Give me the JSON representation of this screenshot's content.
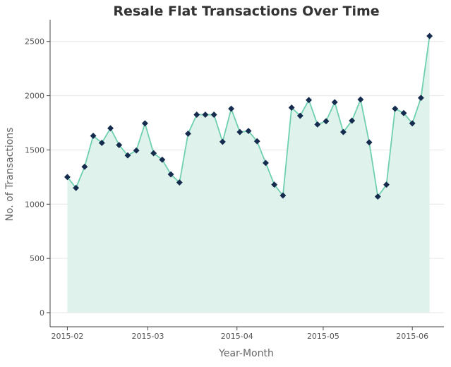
{
  "chart_data": {
    "type": "line",
    "title": "Resale Flat Transactions Over Time",
    "xlabel": "Year-Month",
    "ylabel": "No. of Transactions",
    "ylim": [
      -130,
      2700
    ],
    "yticks": [
      0,
      500,
      1000,
      1500,
      2000,
      2500
    ],
    "xticks": [
      {
        "label": "2015-02",
        "day": 0
      },
      {
        "label": "2015-03",
        "day": 28
      },
      {
        "label": "2015-04",
        "day": 59
      },
      {
        "label": "2015-05",
        "day": 89
      },
      {
        "label": "2015-06",
        "day": 120
      }
    ],
    "xlim_days": [
      -6,
      131
    ],
    "grid": true,
    "fill_area": true,
    "colors": {
      "line": "#6fd0b0",
      "fill": "#dff3ec",
      "marker": "#152c4f"
    },
    "series": [
      {
        "name": "Transactions",
        "x_days": [
          0,
          3,
          6,
          9,
          12,
          15,
          18,
          21,
          24,
          27,
          30,
          33,
          36,
          39,
          42,
          45,
          48,
          51,
          54,
          57,
          60,
          63,
          66,
          69,
          72,
          75,
          78,
          81,
          84,
          87,
          90,
          93,
          96,
          99,
          102,
          105,
          108,
          111,
          114,
          117,
          120,
          123,
          126
        ],
        "values": [
          1250,
          1150,
          1345,
          1630,
          1565,
          1700,
          1545,
          1450,
          1495,
          1745,
          1470,
          1410,
          1275,
          1200,
          1650,
          1825,
          1825,
          1825,
          1575,
          1880,
          1665,
          1675,
          1580,
          1380,
          1180,
          1080,
          1890,
          1815,
          1960,
          1735,
          1765,
          1940,
          1665,
          1770,
          1965,
          1570,
          1070,
          1180,
          1880,
          1840,
          1745,
          1980,
          2550
        ]
      }
    ]
  }
}
